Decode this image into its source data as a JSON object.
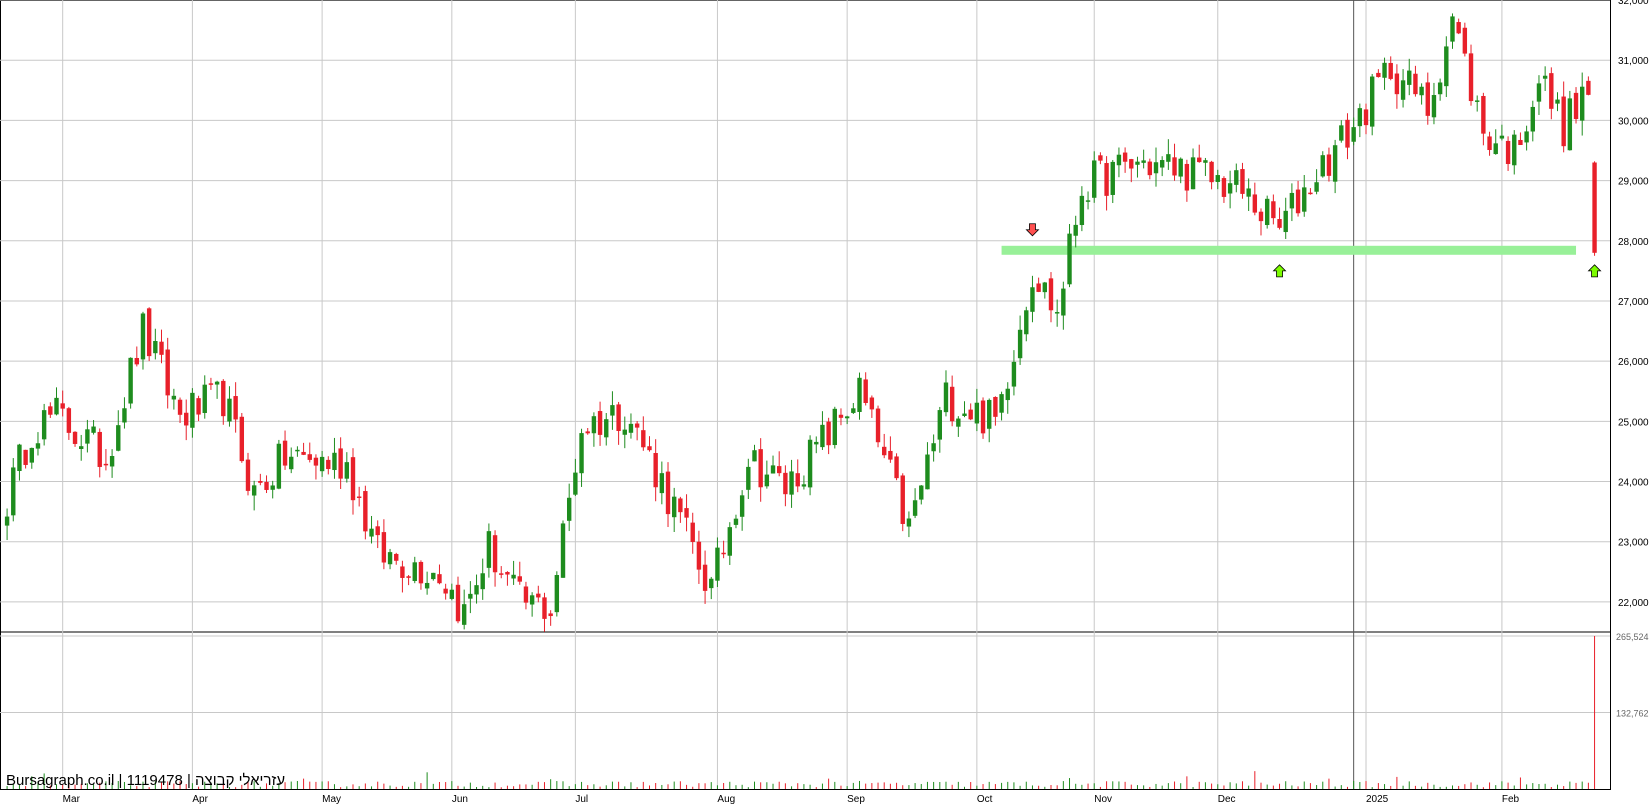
{
  "watermark": "Bursagraph.co.il | 1119478 | עזריאלי קבוצה",
  "colors": {
    "up": "#1e8c1e",
    "down": "#e8202a",
    "support": "#98f098",
    "arrow_up": "#7cfc00",
    "arrow_down": "#ff5050",
    "grid": "#c8c8c8"
  },
  "chart_data": {
    "type": "candlestick",
    "price_axis": {
      "min": 21500,
      "max": 32000,
      "ticks": [
        "22,000",
        "23,000",
        "24,000",
        "25,000",
        "26,000",
        "27,000",
        "28,000",
        "29,000",
        "30,000",
        "31,000",
        "32,000"
      ],
      "tick_values": [
        22000,
        23000,
        24000,
        25000,
        26000,
        27000,
        28000,
        29000,
        30000,
        31000,
        32000
      ]
    },
    "volume_axis": {
      "max": 265524,
      "ticks": [
        "132,762",
        "265,524"
      ],
      "tick_values": [
        132762,
        265524
      ]
    },
    "months": [
      {
        "label": "Mar",
        "index": 9
      },
      {
        "label": "Apr",
        "index": 30
      },
      {
        "label": "May",
        "index": 51
      },
      {
        "label": "Jun",
        "index": 72
      },
      {
        "label": "Jul",
        "index": 92
      },
      {
        "label": "Aug",
        "index": 115
      },
      {
        "label": "Sep",
        "index": 136
      },
      {
        "label": "Oct",
        "index": 157
      },
      {
        "label": "Nov",
        "index": 176
      },
      {
        "label": "Dec",
        "index": 196
      },
      {
        "label": "2025",
        "index": 220
      },
      {
        "label": "Feb",
        "index": 242
      }
    ],
    "year_divider_index": 218,
    "support_level": 27850,
    "support_range": [
      161,
      254
    ],
    "markers": [
      {
        "type": "down",
        "index": 166,
        "price": 28050
      },
      {
        "type": "up",
        "index": 206,
        "price": 27600
      },
      {
        "type": "up",
        "index": 257,
        "price": 27600
      }
    ],
    "waypoints": [
      {
        "i": 0,
        "p": 23700
      },
      {
        "i": 4,
        "p": 24900
      },
      {
        "i": 8,
        "p": 25100
      },
      {
        "i": 16,
        "p": 24400
      },
      {
        "i": 22,
        "p": 26500
      },
      {
        "i": 28,
        "p": 25100
      },
      {
        "i": 35,
        "p": 25400
      },
      {
        "i": 40,
        "p": 23800
      },
      {
        "i": 45,
        "p": 24400
      },
      {
        "i": 55,
        "p": 24300
      },
      {
        "i": 60,
        "p": 22800
      },
      {
        "i": 70,
        "p": 22500
      },
      {
        "i": 74,
        "p": 21800
      },
      {
        "i": 78,
        "p": 22900
      },
      {
        "i": 83,
        "p": 22000
      },
      {
        "i": 88,
        "p": 21900
      },
      {
        "i": 93,
        "p": 24900
      },
      {
        "i": 100,
        "p": 25200
      },
      {
        "i": 106,
        "p": 24000
      },
      {
        "i": 114,
        "p": 22200
      },
      {
        "i": 120,
        "p": 24400
      },
      {
        "i": 126,
        "p": 23900
      },
      {
        "i": 133,
        "p": 24800
      },
      {
        "i": 138,
        "p": 25500
      },
      {
        "i": 146,
        "p": 23200
      },
      {
        "i": 152,
        "p": 25400
      },
      {
        "i": 160,
        "p": 25000
      },
      {
        "i": 166,
        "p": 27500
      },
      {
        "i": 170,
        "p": 26800
      },
      {
        "i": 174,
        "p": 28900
      },
      {
        "i": 183,
        "p": 29300
      },
      {
        "i": 190,
        "p": 29200
      },
      {
        "i": 199,
        "p": 28900
      },
      {
        "i": 206,
        "p": 28200
      },
      {
        "i": 211,
        "p": 29000
      },
      {
        "i": 218,
        "p": 29900
      },
      {
        "i": 224,
        "p": 30900
      },
      {
        "i": 230,
        "p": 30200
      },
      {
        "i": 234,
        "p": 31700
      },
      {
        "i": 239,
        "p": 29800
      },
      {
        "i": 244,
        "p": 29500
      },
      {
        "i": 248,
        "p": 30700
      },
      {
        "i": 252,
        "p": 29900
      },
      {
        "i": 256,
        "p": 30500
      }
    ],
    "volume_spikes": [
      {
        "i": 4,
        "v": 22000
      },
      {
        "i": 6,
        "v": 27000
      },
      {
        "i": 48,
        "v": 18000
      },
      {
        "i": 68,
        "v": 29000
      },
      {
        "i": 88,
        "v": 17000
      },
      {
        "i": 133,
        "v": 18000
      },
      {
        "i": 172,
        "v": 19000
      },
      {
        "i": 191,
        "v": 22000
      },
      {
        "i": 202,
        "v": 31000
      },
      {
        "i": 214,
        "v": 18000
      },
      {
        "i": 225,
        "v": 21000
      },
      {
        "i": 245,
        "v": 20000
      },
      {
        "i": 257,
        "v": 265524
      }
    ]
  }
}
